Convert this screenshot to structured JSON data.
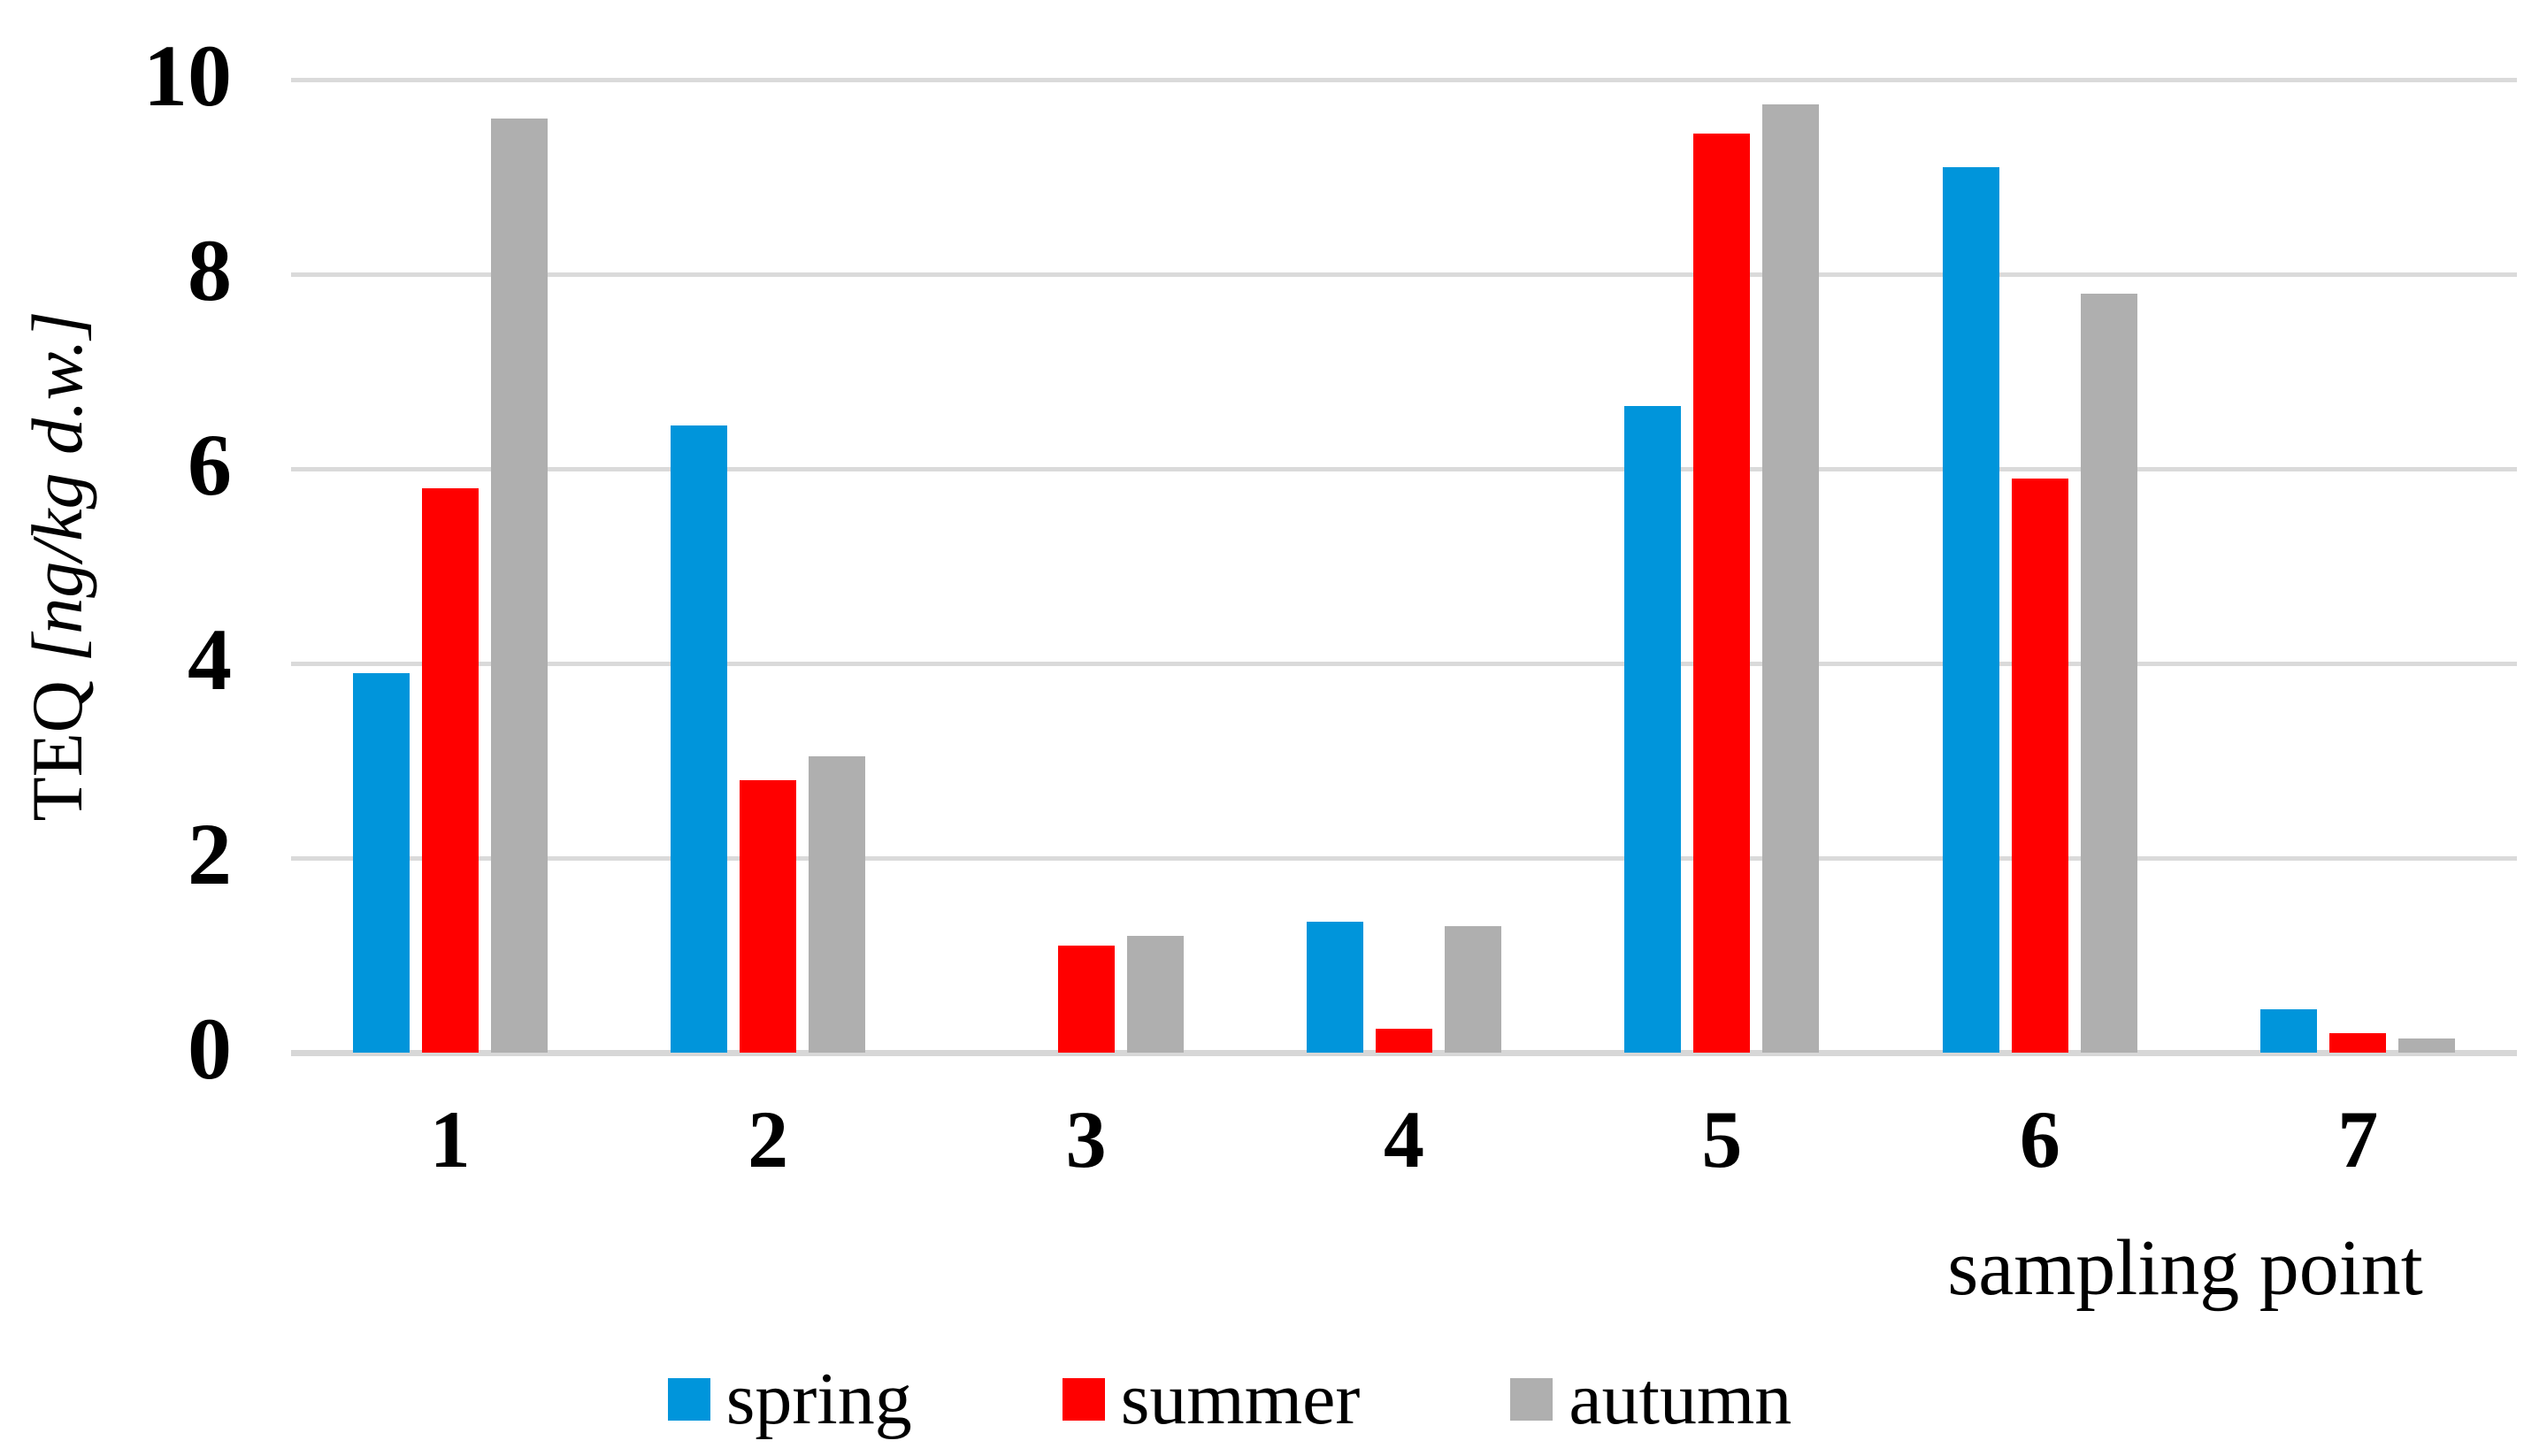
{
  "chart_data": {
    "type": "bar",
    "categories": [
      "1",
      "2",
      "3",
      "4",
      "5",
      "6",
      "7"
    ],
    "series": [
      {
        "name": "spring",
        "color": "#0095DB",
        "values": [
          3.9,
          6.45,
          0,
          1.35,
          6.65,
          9.1,
          0.45
        ]
      },
      {
        "name": "summer",
        "color": "#FF0000",
        "values": [
          5.8,
          2.8,
          1.1,
          0.25,
          9.45,
          5.9,
          0.2
        ]
      },
      {
        "name": "autumn",
        "color": "#AFAFAF",
        "values": [
          9.6,
          3.05,
          1.2,
          1.3,
          9.75,
          7.8,
          0.15
        ]
      }
    ],
    "title": "",
    "xlabel": "sampling point",
    "ylabel": "TEQ [ng/kg d.w.]",
    "ylabel_prefix": "TEQ ",
    "ylabel_units": "[ng/kg d.w.]",
    "ylim": [
      0,
      10
    ],
    "yticks": [
      0,
      2,
      4,
      6,
      8,
      10
    ],
    "grid": true,
    "gridline_color": "#DADADA",
    "background_color": "#FFFFFF",
    "legend_position": "bottom",
    "legend_entries": [
      "spring",
      "summer",
      "autumn"
    ]
  }
}
